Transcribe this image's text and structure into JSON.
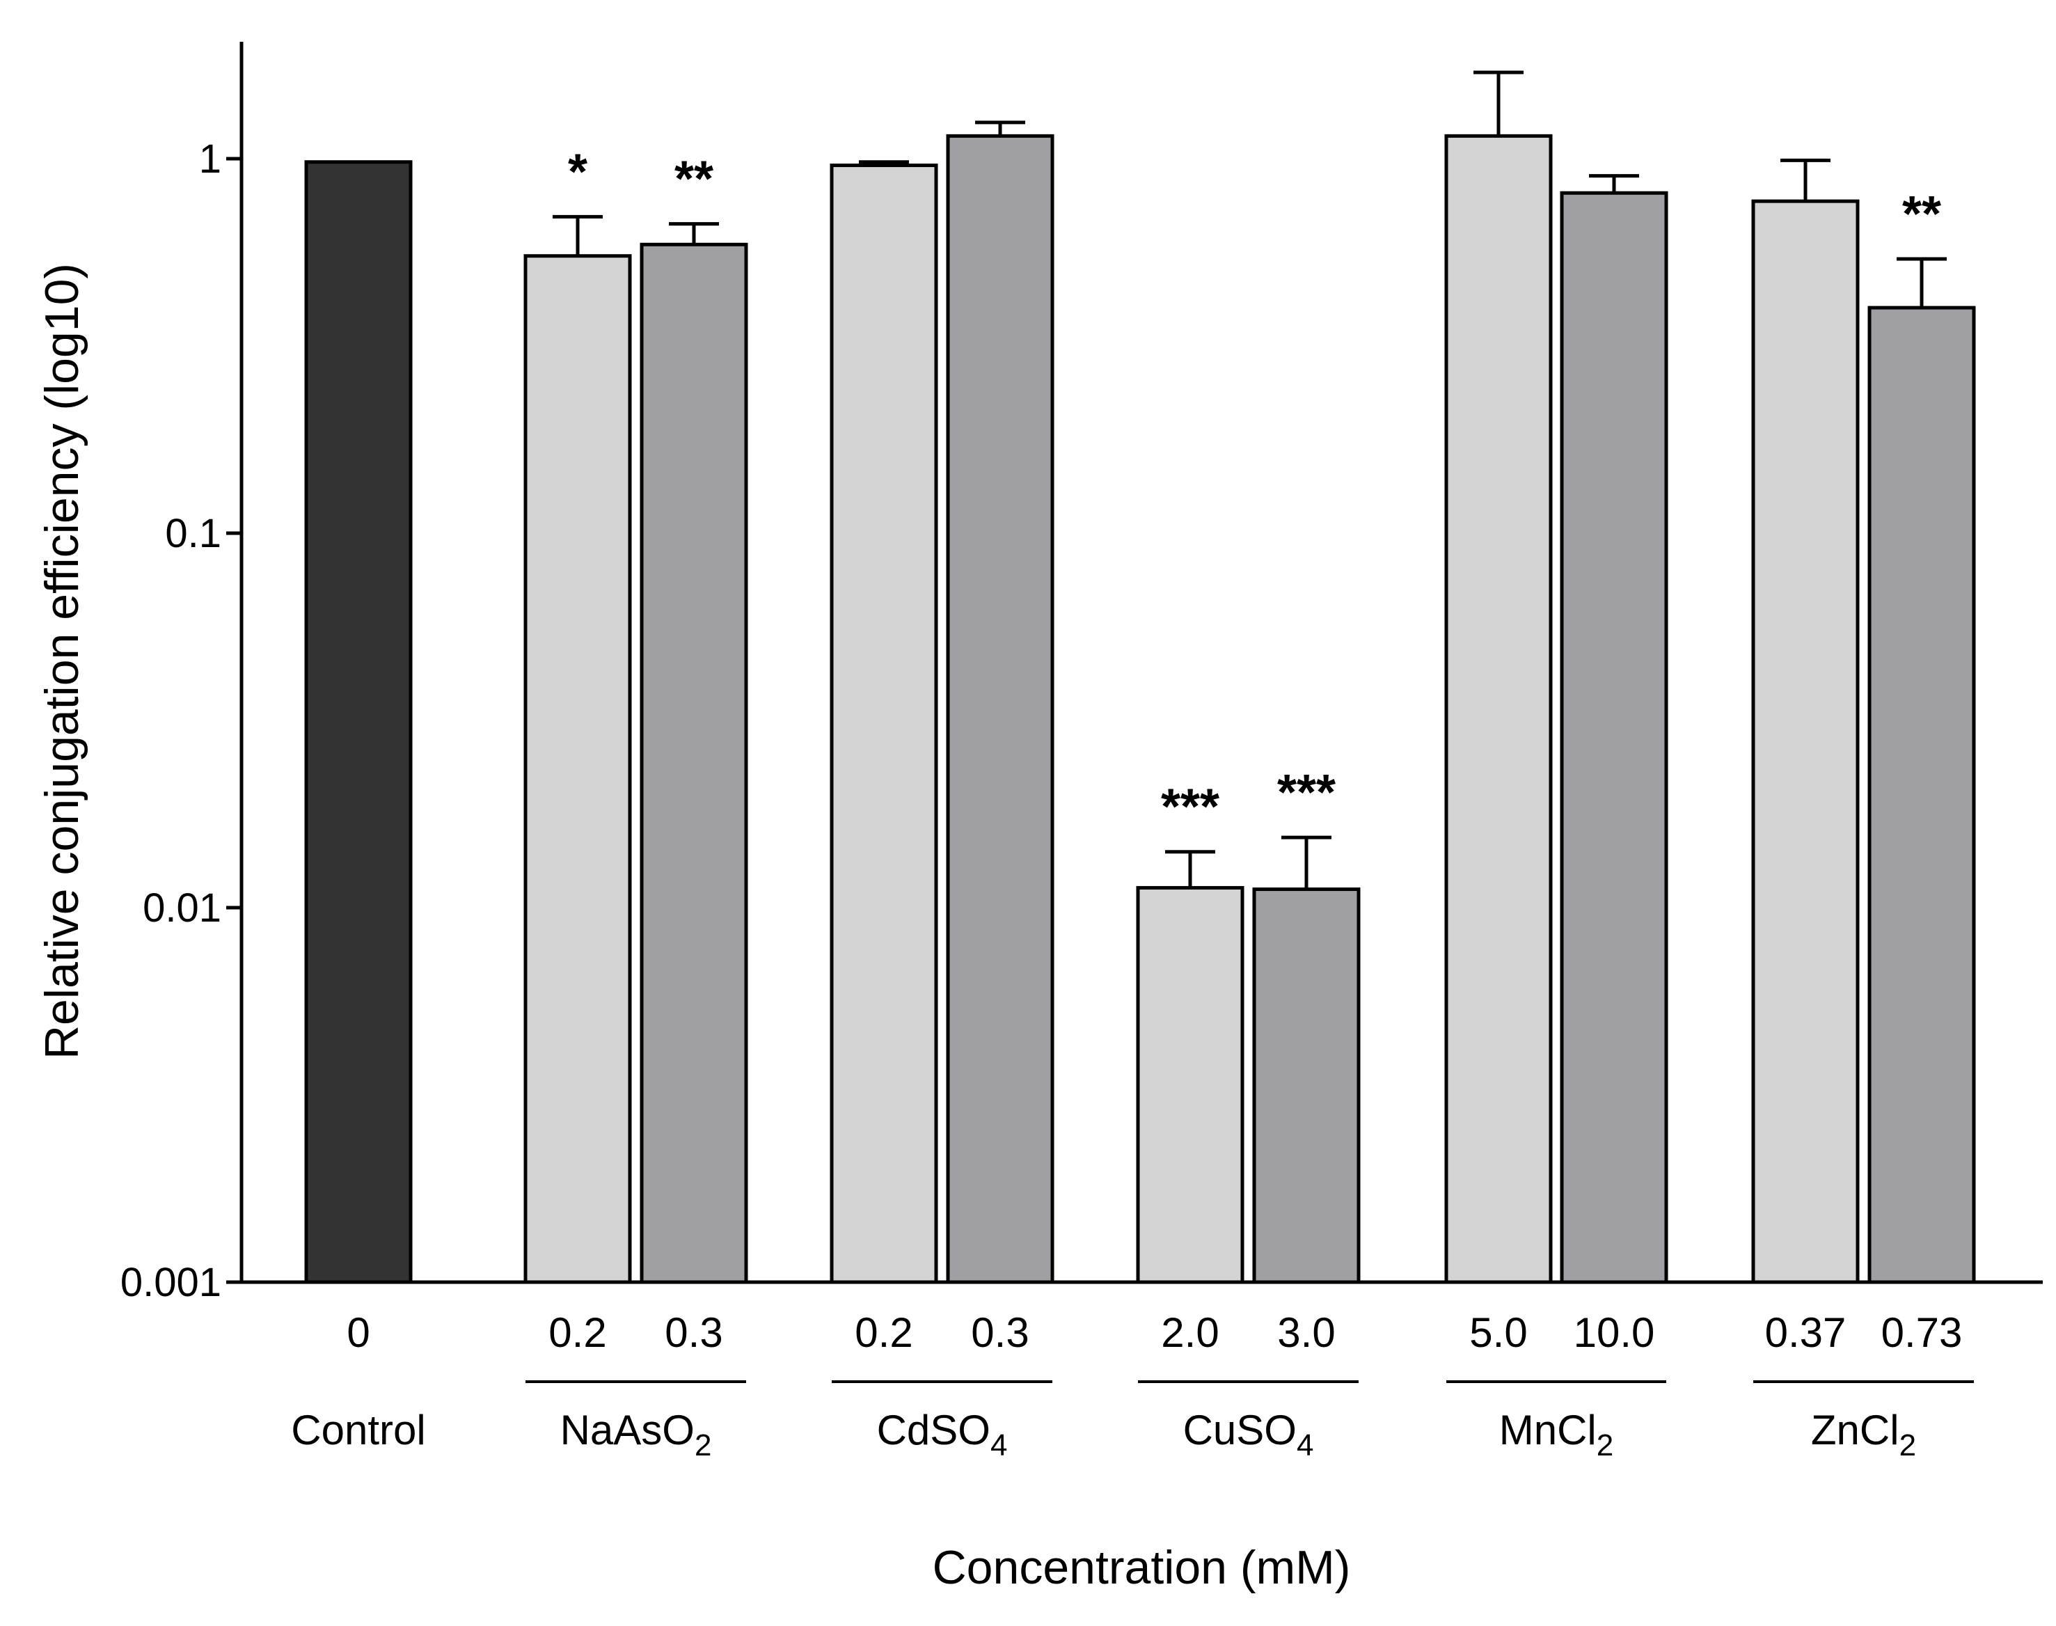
{
  "chart_data": {
    "type": "bar",
    "title": "",
    "xlabel": "Concentration  (mM)",
    "ylabel": "Relative conjugation efficiency  (log10)",
    "yscale": "log",
    "ylim": [
      0.001,
      2
    ],
    "yticks": [
      {
        "value": 0.001,
        "label": "0.001"
      },
      {
        "value": 0.01,
        "label": "0.01"
      },
      {
        "value": 0.1,
        "label": "0.1"
      },
      {
        "value": 1,
        "label": "1"
      }
    ],
    "colors": {
      "control": "#333333",
      "low": "#d4d4d4",
      "high": "#a0a0a4"
    },
    "groups": [
      {
        "name": "Control",
        "formula": "Control",
        "sub": ""
      },
      {
        "name": "NaAsO2",
        "formula": "NaAsO",
        "sub": "2"
      },
      {
        "name": "CdSO4",
        "formula": "CdSO",
        "sub": "4"
      },
      {
        "name": "CuSO4",
        "formula": "CuSO",
        "sub": "4"
      },
      {
        "name": "MnCl2",
        "formula": "MnCl",
        "sub": "2"
      },
      {
        "name": "ZnCl2",
        "formula": "ZnCl",
        "sub": "2"
      }
    ],
    "bars": [
      {
        "group": 0,
        "label": "0",
        "value": 0.98,
        "error": 0,
        "sig": "",
        "shade": "control"
      },
      {
        "group": 1,
        "label": "0.2",
        "value": 0.55,
        "error": 0.15,
        "sig": "*",
        "shade": "low"
      },
      {
        "group": 1,
        "label": "0.3",
        "value": 0.59,
        "error": 0.08,
        "sig": "**",
        "shade": "high"
      },
      {
        "group": 2,
        "label": "0.2",
        "value": 0.96,
        "error": 0.02,
        "sig": "",
        "shade": "low"
      },
      {
        "group": 2,
        "label": "0.3",
        "value": 1.15,
        "error": 0.1,
        "sig": "",
        "shade": "high"
      },
      {
        "group": 3,
        "label": "2.0",
        "value": 0.0113,
        "error": 0.0028,
        "sig": "***",
        "shade": "low"
      },
      {
        "group": 3,
        "label": "3.0",
        "value": 0.0112,
        "error": 0.0042,
        "sig": "***",
        "shade": "high"
      },
      {
        "group": 4,
        "label": "5.0",
        "value": 1.15,
        "error": 0.55,
        "sig": "",
        "shade": "low"
      },
      {
        "group": 4,
        "label": "10.0",
        "value": 0.81,
        "error": 0.09,
        "sig": "",
        "shade": "high"
      },
      {
        "group": 5,
        "label": "0.37",
        "value": 0.77,
        "error": 0.22,
        "sig": "",
        "shade": "low"
      },
      {
        "group": 5,
        "label": "0.73",
        "value": 0.4,
        "error": 0.14,
        "sig": "**",
        "shade": "high"
      }
    ]
  }
}
